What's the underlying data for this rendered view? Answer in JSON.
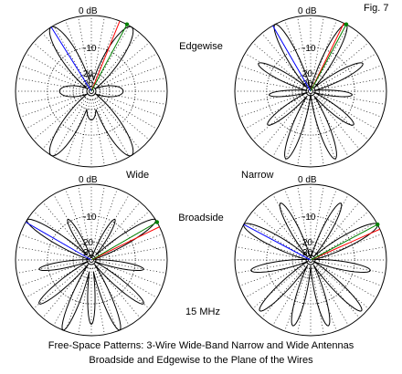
{
  "fig_label": "Fig. 7",
  "labels": {
    "edgewise": "Edgewise",
    "broadside": "Broadside",
    "wide": "Wide",
    "narrow": "Narrow",
    "freq": "15 MHz"
  },
  "caption": {
    "line1": "Free-Space Patterns:  3-Wire Wide-Band Narrow and Wide Antennas",
    "line2": "Broadside and Edgewise to the Plane of the Wires"
  },
  "colors": {
    "pattern": "#000000",
    "grid": "#000000",
    "blue_ray": "#0000ff",
    "red_ray": "#ff0000",
    "green_ray": "#008000",
    "marker": "#008000"
  },
  "chart_data": [
    {
      "type": "polar",
      "position": "top-left",
      "ring_labels": [
        "0 dB",
        "-10",
        "20",
        "30"
      ],
      "ring_db": [
        0,
        -10,
        -20,
        -30
      ],
      "lobes": [
        {
          "az": 32,
          "len": 1.0,
          "w": 0.35
        },
        {
          "az": -32,
          "len": 1.0,
          "w": 0.35
        },
        {
          "az": 90,
          "len": 0.42,
          "w": 0.55
        },
        {
          "az": -90,
          "len": 0.42,
          "w": 0.55
        },
        {
          "az": 148,
          "len": 1.0,
          "w": 0.35
        },
        {
          "az": -148,
          "len": 1.0,
          "w": 0.35
        },
        {
          "az": 180,
          "len": 0.38,
          "w": 0.5
        },
        {
          "az": 0,
          "len": 0.22,
          "w": 0.4
        }
      ],
      "rays": [
        {
          "az": -32,
          "color": "blue"
        },
        {
          "az": 22,
          "color": "red"
        },
        {
          "az": 28,
          "color": "green"
        }
      ]
    },
    {
      "type": "polar",
      "position": "top-right",
      "ring_labels": [
        "0 dB",
        "-10",
        "20",
        "30"
      ],
      "ring_db": [
        0,
        -10,
        -20,
        -30
      ],
      "lobes": [
        {
          "az": 28,
          "len": 1.0,
          "w": 0.24
        },
        {
          "az": -28,
          "len": 1.0,
          "w": 0.24
        },
        {
          "az": 62,
          "len": 0.78,
          "w": 0.24
        },
        {
          "az": -62,
          "len": 0.78,
          "w": 0.24
        },
        {
          "az": 95,
          "len": 0.55,
          "w": 0.22
        },
        {
          "az": -95,
          "len": 0.55,
          "w": 0.22
        },
        {
          "az": 128,
          "len": 0.72,
          "w": 0.24
        },
        {
          "az": -128,
          "len": 0.72,
          "w": 0.24
        },
        {
          "az": 160,
          "len": 0.95,
          "w": 0.24
        },
        {
          "az": -160,
          "len": 0.95,
          "w": 0.24
        }
      ],
      "rays": [
        {
          "az": -30,
          "color": "blue"
        },
        {
          "az": 26,
          "color": "red"
        },
        {
          "az": 28,
          "color": "green"
        }
      ]
    },
    {
      "type": "polar",
      "position": "bottom-left",
      "ring_labels": [
        "0 dB",
        "-10",
        "20",
        "30"
      ],
      "ring_db": [
        0,
        -10,
        -20,
        -30
      ],
      "lobes": [
        {
          "az": 58,
          "len": 1.0,
          "w": 0.22
        },
        {
          "az": -58,
          "len": 1.0,
          "w": 0.22
        },
        {
          "az": 30,
          "len": 0.62,
          "w": 0.2
        },
        {
          "az": -30,
          "len": 0.62,
          "w": 0.2
        },
        {
          "az": 100,
          "len": 0.7,
          "w": 0.2
        },
        {
          "az": -100,
          "len": 0.7,
          "w": 0.2
        },
        {
          "az": 130,
          "len": 0.9,
          "w": 0.2
        },
        {
          "az": -130,
          "len": 0.9,
          "w": 0.2
        },
        {
          "az": 158,
          "len": 1.0,
          "w": 0.2
        },
        {
          "az": -158,
          "len": 1.0,
          "w": 0.2
        },
        {
          "az": 180,
          "len": 0.85,
          "w": 0.18
        }
      ],
      "rays": [
        {
          "az": -60,
          "color": "blue"
        },
        {
          "az": 64,
          "color": "red"
        },
        {
          "az": 60,
          "color": "green"
        }
      ]
    },
    {
      "type": "polar",
      "position": "bottom-right",
      "ring_labels": [
        "0 dB",
        "-10",
        "20",
        "30"
      ],
      "ring_db": [
        0,
        -10,
        -20,
        -30
      ],
      "lobes": [
        {
          "az": 62,
          "len": 1.0,
          "w": 0.25
        },
        {
          "az": -62,
          "len": 1.0,
          "w": 0.25
        },
        {
          "az": 28,
          "len": 0.85,
          "w": 0.22
        },
        {
          "az": -28,
          "len": 0.85,
          "w": 0.22
        },
        {
          "az": 100,
          "len": 0.8,
          "w": 0.22
        },
        {
          "az": -100,
          "len": 0.8,
          "w": 0.22
        },
        {
          "az": 135,
          "len": 0.95,
          "w": 0.22
        },
        {
          "az": -135,
          "len": 0.95,
          "w": 0.22
        },
        {
          "az": 165,
          "len": 0.9,
          "w": 0.22
        },
        {
          "az": -165,
          "len": 0.9,
          "w": 0.22
        }
      ],
      "rays": [
        {
          "az": -62,
          "color": "blue"
        },
        {
          "az": 66,
          "color": "red"
        },
        {
          "az": 62,
          "color": "green"
        }
      ]
    }
  ]
}
